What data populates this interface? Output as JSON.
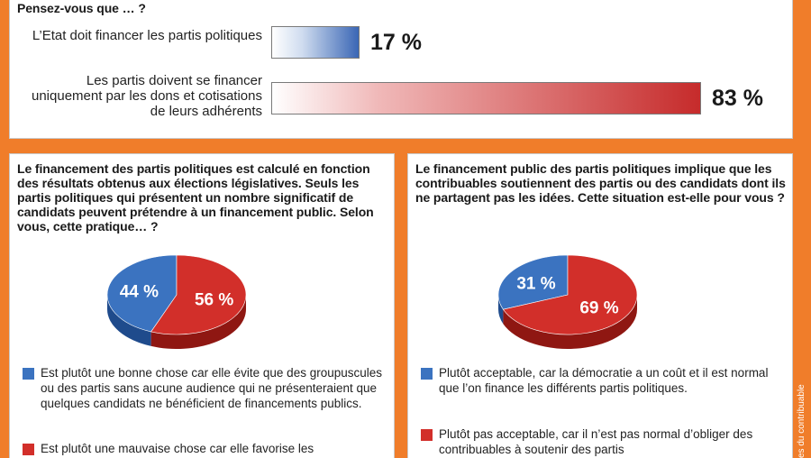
{
  "top": {
    "question": "Pensez-vous que … ?",
    "items": [
      {
        "label": "L’Etat doit financer les partis politiques",
        "value_text": "17 %"
      },
      {
        "label": "Les partis doivent se financer uniquement par les dons et cotisations de leurs adhérents",
        "value_text": "83 %"
      }
    ]
  },
  "left": {
    "question": "Le financement des partis politiques est calculé en fonction des résultats obtenus aux élections législatives. Seuls les partis politiques qui présentent un nombre significatif de candidats peuvent prétendre à un financement public. Selon vous, cette pratique… ?",
    "pie_labels": [
      "44 %",
      "56 %"
    ],
    "legend": [
      "Est plutôt une bonne chose car elle évite que des groupuscules ou des partis sans aucune audience qui ne présenteraient que quelques candidats ne bénéficient de financements publics.",
      "Est plutôt une mauvaise chose car elle favorise les"
    ]
  },
  "right": {
    "question": "Le financement public des partis politiques implique que les contribuables soutiennent des partis ou des candidats dont ils ne partagent pas les idées. Cette situation est-elle pour vous ?",
    "pie_labels": [
      "31 %",
      "69 %"
    ],
    "legend": [
      "Plutôt acceptable, car la démocratie a un coût et il est normal que l’on finance les différents partis politiques.",
      "Plutôt pas acceptable, car il n’est pas normal d’obliger des contribuables à soutenir des partis"
    ]
  },
  "side_credit": "es du contribuable",
  "colors": {
    "blue": "#3b73c0",
    "blue_dark": "#1f4b8c",
    "red": "#d22f2a",
    "red_dark": "#8f1712",
    "background": "#f07d2a"
  },
  "chart_data": [
    {
      "type": "bar",
      "title": "Pensez-vous que … ?",
      "categories": [
        "L’Etat doit financer les partis politiques",
        "Les partis doivent se financer uniquement par les dons et cotisations de leurs adhérents"
      ],
      "values": [
        17,
        83
      ],
      "ylim": [
        0,
        100
      ]
    },
    {
      "type": "pie",
      "categories": [
        "Est plutôt une bonne chose",
        "Est plutôt une mauvaise chose"
      ],
      "values": [
        44,
        56
      ]
    },
    {
      "type": "pie",
      "categories": [
        "Plutôt acceptable",
        "Plutôt pas acceptable"
      ],
      "values": [
        31,
        69
      ]
    }
  ]
}
